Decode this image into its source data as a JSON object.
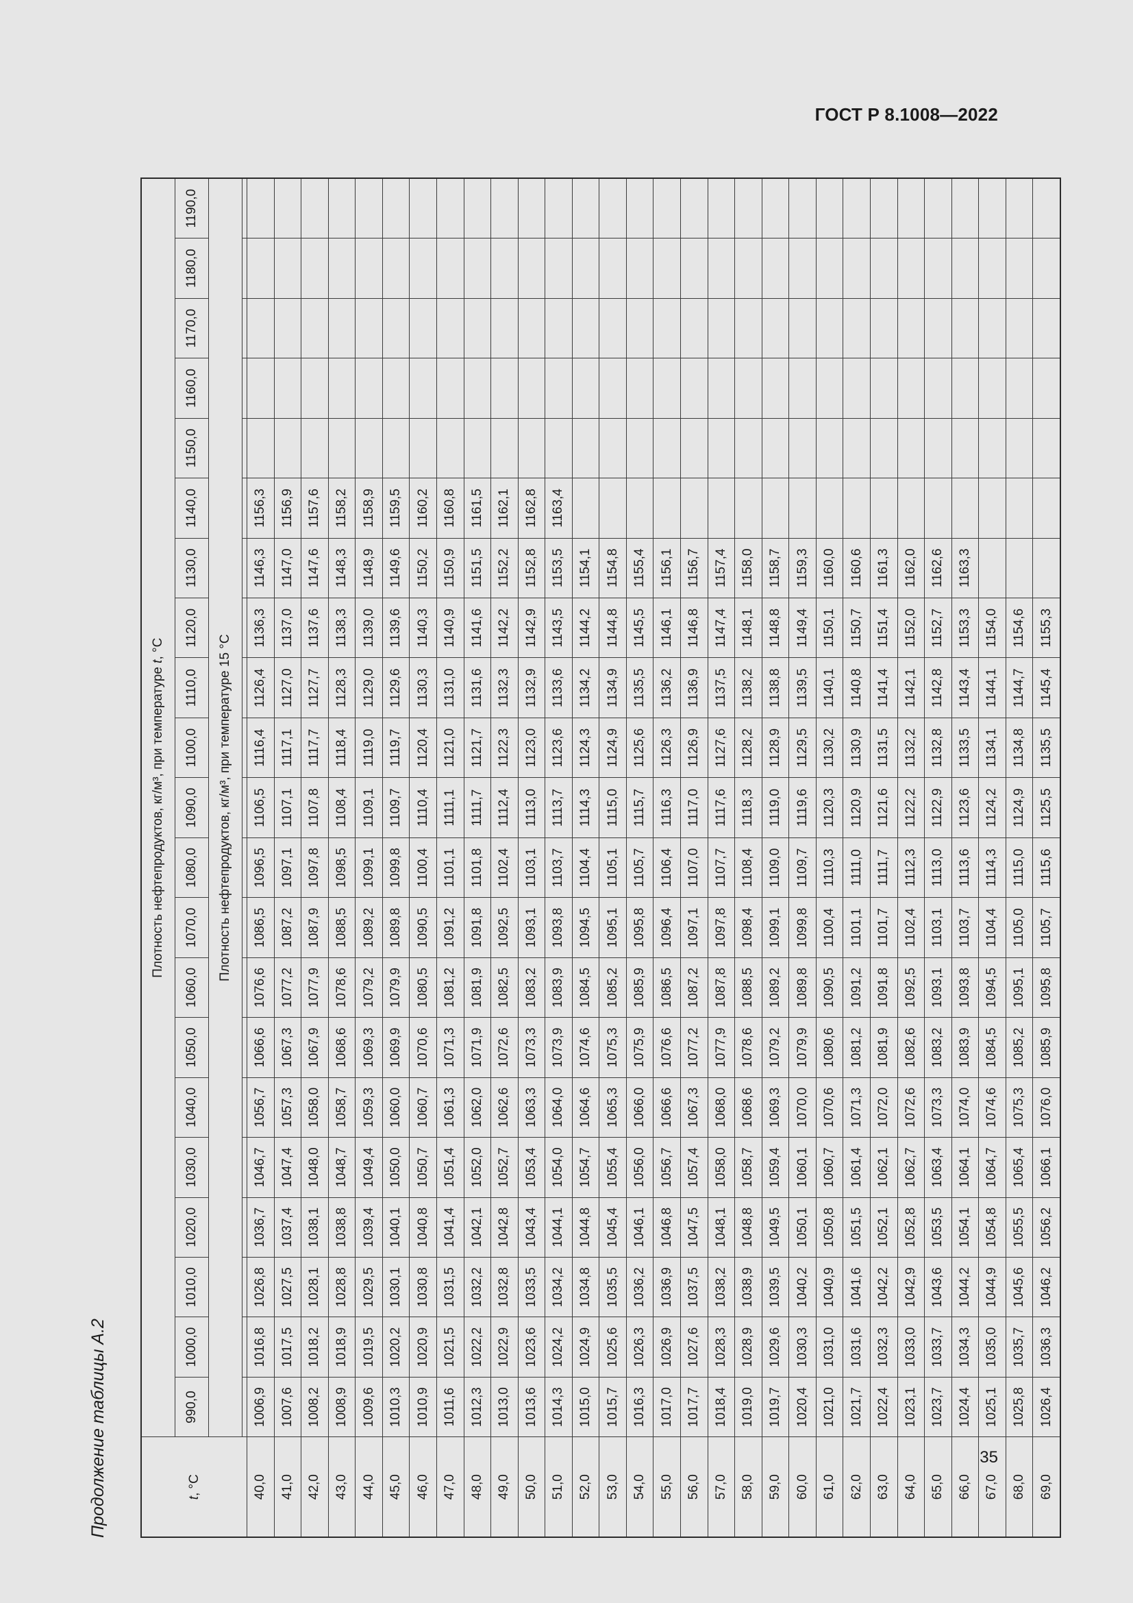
{
  "header": {
    "doc_code": "ГОСТ Р 8.1008—2022"
  },
  "page_number": "35",
  "table": {
    "caption": "Продолжение таблицы А.2",
    "row_header_label": {
      "prefix": "t",
      "suffix": ", °C"
    },
    "group_header": "Плотность нефтепродуктов, кг/м³, при температуре t, °С",
    "sub_header": "Плотность нефтепродуктов, кг/м³, при температуре 15 °С",
    "columns": [
      "990,0",
      "1000,0",
      "1010,0",
      "1020,0",
      "1030,0",
      "1040,0",
      "1050,0",
      "1060,0",
      "1070,0",
      "1080,0",
      "1090,0",
      "1100,0",
      "1110,0",
      "1120,0",
      "1130,0",
      "1140,0",
      "1150,0",
      "1160,0",
      "1170,0",
      "1180,0",
      "1190,0"
    ],
    "rows": [
      {
        "t": "40,0",
        "v": [
          "1006,9",
          "1016,8",
          "1026,8",
          "1036,7",
          "1046,7",
          "1056,7",
          "1066,6",
          "1076,6",
          "1086,5",
          "1096,5",
          "1106,5",
          "1116,4",
          "1126,4",
          "1136,3",
          "1146,3",
          "1156,3",
          "",
          "",
          "",
          "",
          ""
        ]
      },
      {
        "t": "41,0",
        "v": [
          "1007,6",
          "1017,5",
          "1027,5",
          "1037,4",
          "1047,4",
          "1057,3",
          "1067,3",
          "1077,2",
          "1087,2",
          "1097,1",
          "1107,1",
          "1117,1",
          "1127,0",
          "1137,0",
          "1147,0",
          "1156,9",
          "",
          "",
          "",
          "",
          ""
        ]
      },
      {
        "t": "42,0",
        "v": [
          "1008,2",
          "1018,2",
          "1028,1",
          "1038,1",
          "1048,0",
          "1058,0",
          "1067,9",
          "1077,9",
          "1087,9",
          "1097,8",
          "1107,8",
          "1117,7",
          "1127,7",
          "1137,6",
          "1147,6",
          "1157,6",
          "",
          "",
          "",
          "",
          ""
        ]
      },
      {
        "t": "43,0",
        "v": [
          "1008,9",
          "1018,9",
          "1028,8",
          "1038,8",
          "1048,7",
          "1058,7",
          "1068,6",
          "1078,6",
          "1088,5",
          "1098,5",
          "1108,4",
          "1118,4",
          "1128,3",
          "1138,3",
          "1148,3",
          "1158,2",
          "",
          "",
          "",
          "",
          ""
        ]
      },
      {
        "t": "44,0",
        "v": [
          "1009,6",
          "1019,5",
          "1029,5",
          "1039,4",
          "1049,4",
          "1059,3",
          "1069,3",
          "1079,2",
          "1089,2",
          "1099,1",
          "1109,1",
          "1119,0",
          "1129,0",
          "1139,0",
          "1148,9",
          "1158,9",
          "",
          "",
          "",
          "",
          ""
        ]
      },
      {
        "t": "45,0",
        "v": [
          "1010,3",
          "1020,2",
          "1030,1",
          "1040,1",
          "1050,0",
          "1060,0",
          "1069,9",
          "1079,9",
          "1089,8",
          "1099,8",
          "1109,7",
          "1119,7",
          "1129,6",
          "1139,6",
          "1149,6",
          "1159,5",
          "",
          "",
          "",
          "",
          ""
        ]
      },
      {
        "t": "46,0",
        "v": [
          "1010,9",
          "1020,9",
          "1030,8",
          "1040,8",
          "1050,7",
          "1060,7",
          "1070,6",
          "1080,5",
          "1090,5",
          "1100,4",
          "1110,4",
          "1120,4",
          "1130,3",
          "1140,3",
          "1150,2",
          "1160,2",
          "",
          "",
          "",
          "",
          ""
        ]
      },
      {
        "t": "47,0",
        "v": [
          "1011,6",
          "1021,5",
          "1031,5",
          "1041,4",
          "1051,4",
          "1061,3",
          "1071,3",
          "1081,2",
          "1091,2",
          "1101,1",
          "1111,1",
          "1121,0",
          "1131,0",
          "1140,9",
          "1150,9",
          "1160,8",
          "",
          "",
          "",
          "",
          ""
        ]
      },
      {
        "t": "48,0",
        "v": [
          "1012,3",
          "1022,2",
          "1032,2",
          "1042,1",
          "1052,0",
          "1062,0",
          "1071,9",
          "1081,9",
          "1091,8",
          "1101,8",
          "1111,7",
          "1121,7",
          "1131,6",
          "1141,6",
          "1151,5",
          "1161,5",
          "",
          "",
          "",
          "",
          ""
        ]
      },
      {
        "t": "49,0",
        "v": [
          "1013,0",
          "1022,9",
          "1032,8",
          "1042,8",
          "1052,7",
          "1062,6",
          "1072,6",
          "1082,5",
          "1092,5",
          "1102,4",
          "1112,4",
          "1122,3",
          "1132,3",
          "1142,2",
          "1152,2",
          "1162,1",
          "",
          "",
          "",
          "",
          ""
        ]
      },
      {
        "t": "50,0",
        "v": [
          "1013,6",
          "1023,6",
          "1033,5",
          "1043,4",
          "1053,4",
          "1063,3",
          "1073,3",
          "1083,2",
          "1093,1",
          "1103,1",
          "1113,0",
          "1123,0",
          "1132,9",
          "1142,9",
          "1152,8",
          "1162,8",
          "",
          "",
          "",
          "",
          ""
        ]
      },
      {
        "t": "51,0",
        "v": [
          "1014,3",
          "1024,2",
          "1034,2",
          "1044,1",
          "1054,0",
          "1064,0",
          "1073,9",
          "1083,9",
          "1093,8",
          "1103,7",
          "1113,7",
          "1123,6",
          "1133,6",
          "1143,5",
          "1153,5",
          "1163,4",
          "",
          "",
          "",
          "",
          ""
        ]
      },
      {
        "t": "52,0",
        "v": [
          "1015,0",
          "1024,9",
          "1034,8",
          "1044,8",
          "1054,7",
          "1064,6",
          "1074,6",
          "1084,5",
          "1094,5",
          "1104,4",
          "1114,3",
          "1124,3",
          "1134,2",
          "1144,2",
          "1154,1",
          "",
          "",
          "",
          "",
          "",
          ""
        ]
      },
      {
        "t": "53,0",
        "v": [
          "1015,7",
          "1025,6",
          "1035,5",
          "1045,4",
          "1055,4",
          "1065,3",
          "1075,3",
          "1085,2",
          "1095,1",
          "1105,1",
          "1115,0",
          "1124,9",
          "1134,9",
          "1144,8",
          "1154,8",
          "",
          "",
          "",
          "",
          "",
          ""
        ]
      },
      {
        "t": "54,0",
        "v": [
          "1016,3",
          "1026,3",
          "1036,2",
          "1046,1",
          "1056,0",
          "1066,0",
          "1075,9",
          "1085,9",
          "1095,8",
          "1105,7",
          "1115,7",
          "1125,6",
          "1135,5",
          "1145,5",
          "1155,4",
          "",
          "",
          "",
          "",
          "",
          ""
        ]
      },
      {
        "t": "55,0",
        "v": [
          "1017,0",
          "1026,9",
          "1036,9",
          "1046,8",
          "1056,7",
          "1066,6",
          "1076,6",
          "1086,5",
          "1096,4",
          "1106,4",
          "1116,3",
          "1126,3",
          "1136,2",
          "1146,1",
          "1156,1",
          "",
          "",
          "",
          "",
          "",
          ""
        ]
      },
      {
        "t": "56,0",
        "v": [
          "1017,7",
          "1027,6",
          "1037,5",
          "1047,5",
          "1057,4",
          "1067,3",
          "1077,2",
          "1087,2",
          "1097,1",
          "1107,0",
          "1117,0",
          "1126,9",
          "1136,9",
          "1146,8",
          "1156,7",
          "",
          "",
          "",
          "",
          "",
          ""
        ]
      },
      {
        "t": "57,0",
        "v": [
          "1018,4",
          "1028,3",
          "1038,2",
          "1048,1",
          "1058,0",
          "1068,0",
          "1077,9",
          "1087,8",
          "1097,8",
          "1107,7",
          "1117,6",
          "1127,6",
          "1137,5",
          "1147,4",
          "1157,4",
          "",
          "",
          "",
          "",
          "",
          ""
        ]
      },
      {
        "t": "58,0",
        "v": [
          "1019,0",
          "1028,9",
          "1038,9",
          "1048,8",
          "1058,7",
          "1068,6",
          "1078,6",
          "1088,5",
          "1098,4",
          "1108,4",
          "1118,3",
          "1128,2",
          "1138,2",
          "1148,1",
          "1158,0",
          "",
          "",
          "",
          "",
          "",
          ""
        ]
      },
      {
        "t": "59,0",
        "v": [
          "1019,7",
          "1029,6",
          "1039,5",
          "1049,5",
          "1059,4",
          "1069,3",
          "1079,2",
          "1089,2",
          "1099,1",
          "1109,0",
          "1119,0",
          "1128,9",
          "1138,8",
          "1148,8",
          "1158,7",
          "",
          "",
          "",
          "",
          "",
          ""
        ]
      },
      {
        "t": "60,0",
        "v": [
          "1020,4",
          "1030,3",
          "1040,2",
          "1050,1",
          "1060,1",
          "1070,0",
          "1079,9",
          "1089,8",
          "1099,8",
          "1109,7",
          "1119,6",
          "1129,5",
          "1139,5",
          "1149,4",
          "1159,3",
          "",
          "",
          "",
          "",
          "",
          ""
        ]
      },
      {
        "t": "61,0",
        "v": [
          "1021,0",
          "1031,0",
          "1040,9",
          "1050,8",
          "1060,7",
          "1070,6",
          "1080,6",
          "1090,5",
          "1100,4",
          "1110,3",
          "1120,3",
          "1130,2",
          "1140,1",
          "1150,1",
          "1160,0",
          "",
          "",
          "",
          "",
          "",
          ""
        ]
      },
      {
        "t": "62,0",
        "v": [
          "1021,7",
          "1031,6",
          "1041,6",
          "1051,5",
          "1061,4",
          "1071,3",
          "1081,2",
          "1091,2",
          "1101,1",
          "1111,0",
          "1120,9",
          "1130,9",
          "1140,8",
          "1150,7",
          "1160,6",
          "",
          "",
          "",
          "",
          "",
          ""
        ]
      },
      {
        "t": "63,0",
        "v": [
          "1022,4",
          "1032,3",
          "1042,2",
          "1052,1",
          "1062,1",
          "1072,0",
          "1081,9",
          "1091,8",
          "1101,7",
          "1111,7",
          "1121,6",
          "1131,5",
          "1141,4",
          "1151,4",
          "1161,3",
          "",
          "",
          "",
          "",
          "",
          ""
        ]
      },
      {
        "t": "64,0",
        "v": [
          "1023,1",
          "1033,0",
          "1042,9",
          "1052,8",
          "1062,7",
          "1072,6",
          "1082,6",
          "1092,5",
          "1102,4",
          "1112,3",
          "1122,2",
          "1132,2",
          "1142,1",
          "1152,0",
          "1162,0",
          "",
          "",
          "",
          "",
          "",
          ""
        ]
      },
      {
        "t": "65,0",
        "v": [
          "1023,7",
          "1033,7",
          "1043,6",
          "1053,5",
          "1063,4",
          "1073,3",
          "1083,2",
          "1093,1",
          "1103,1",
          "1113,0",
          "1122,9",
          "1132,8",
          "1142,8",
          "1152,7",
          "1162,6",
          "",
          "",
          "",
          "",
          "",
          ""
        ]
      },
      {
        "t": "66,0",
        "v": [
          "1024,4",
          "1034,3",
          "1044,2",
          "1054,1",
          "1064,1",
          "1074,0",
          "1083,9",
          "1093,8",
          "1103,7",
          "1113,6",
          "1123,6",
          "1133,5",
          "1143,4",
          "1153,3",
          "1163,3",
          "",
          "",
          "",
          "",
          "",
          ""
        ]
      },
      {
        "t": "67,0",
        "v": [
          "1025,1",
          "1035,0",
          "1044,9",
          "1054,8",
          "1064,7",
          "1074,6",
          "1084,5",
          "1094,5",
          "1104,4",
          "1114,3",
          "1124,2",
          "1134,1",
          "1144,1",
          "1154,0",
          "",
          "",
          "",
          "",
          "",
          "",
          ""
        ]
      },
      {
        "t": "68,0",
        "v": [
          "1025,8",
          "1035,7",
          "1045,6",
          "1055,5",
          "1065,4",
          "1075,3",
          "1085,2",
          "1095,1",
          "1105,0",
          "1115,0",
          "1124,9",
          "1134,8",
          "1144,7",
          "1154,6",
          "",
          "",
          "",
          "",
          "",
          "",
          ""
        ]
      },
      {
        "t": "69,0",
        "v": [
          "1026,4",
          "1036,3",
          "1046,2",
          "1056,2",
          "1066,1",
          "1076,0",
          "1085,9",
          "1095,8",
          "1105,7",
          "1115,6",
          "1125,5",
          "1135,5",
          "1145,4",
          "1155,3",
          "",
          "",
          "",
          "",
          "",
          "",
          ""
        ]
      }
    ]
  }
}
